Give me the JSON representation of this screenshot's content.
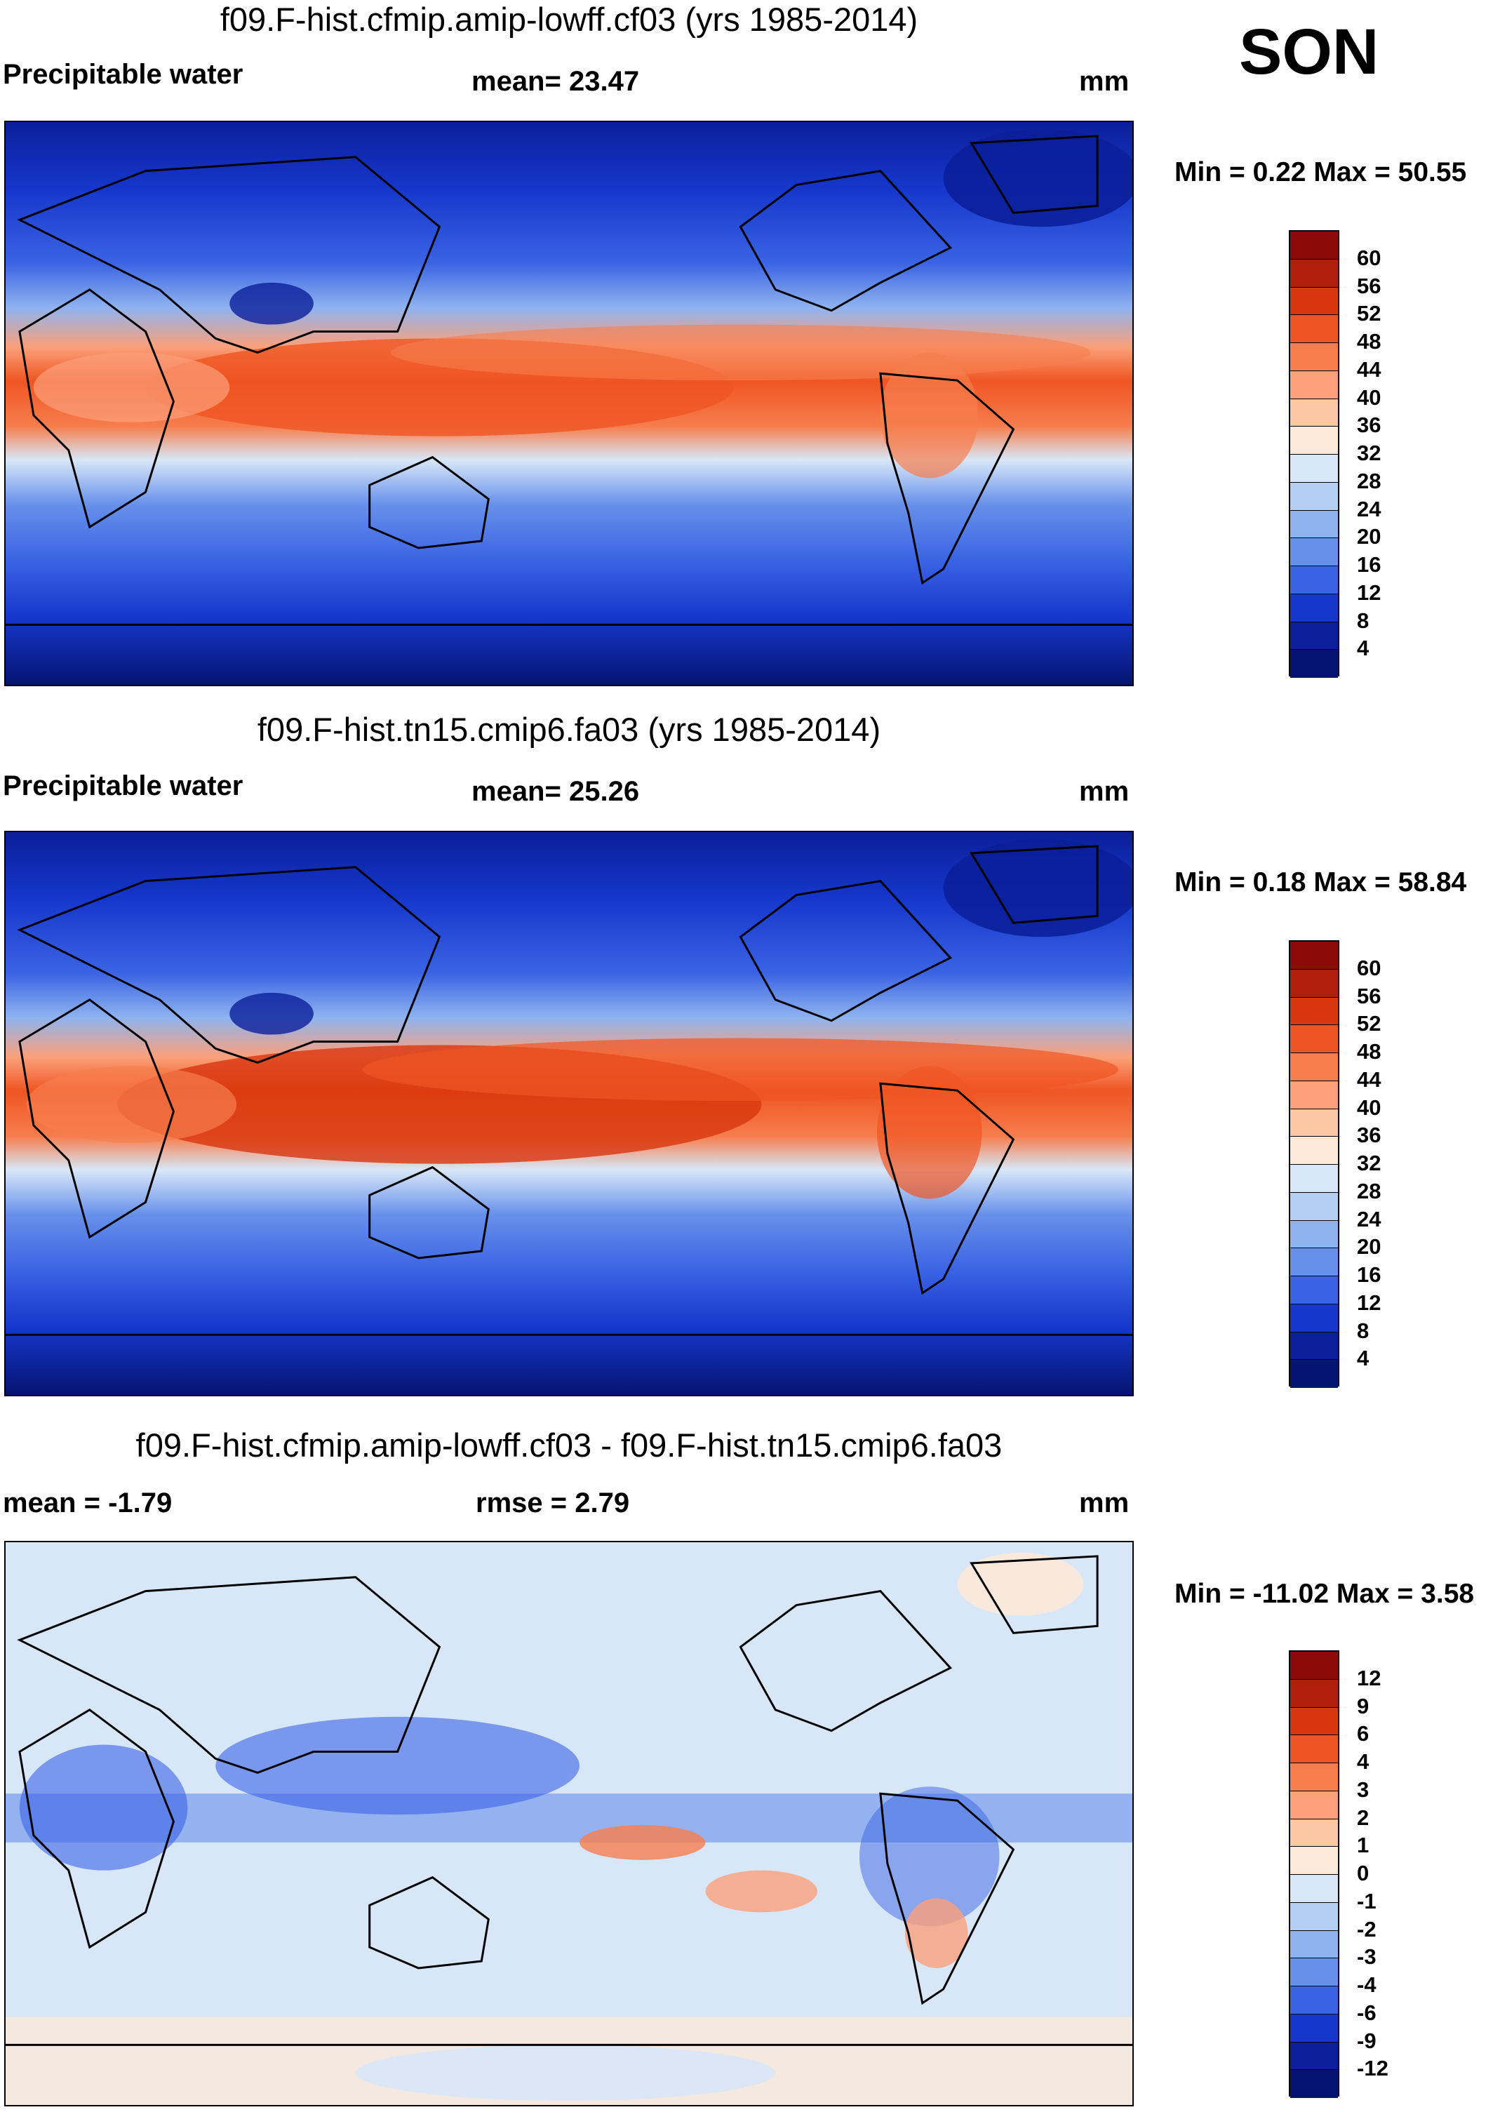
{
  "season": "SON",
  "units": "mm",
  "panels": [
    {
      "title": "f09.F-hist.cfmip.amip-lowff.cf03 (yrs 1985-2014)",
      "variable": "Precipitable water",
      "mean_text": "mean=  23.47",
      "units": "mm",
      "min_max": "Min =   0.22 Max =  50.55"
    },
    {
      "title": "f09.F-hist.tn15.cmip6.fa03 (yrs 1985-2014)",
      "variable": "Precipitable water",
      "mean_text": "mean=  25.26",
      "units": "mm",
      "min_max": "Min =   0.18 Max =  58.84"
    },
    {
      "title": "f09.F-hist.cfmip.amip-lowff.cf03 - f09.F-hist.tn15.cmip6.fa03",
      "mean_text": "mean =  -1.79",
      "rmse_text": "rmse =   2.79",
      "units": "mm",
      "min_max": "Min = -11.02 Max =   3.58"
    }
  ],
  "colorbar_abs": {
    "labels": [
      "60",
      "56",
      "52",
      "48",
      "44",
      "40",
      "36",
      "32",
      "28",
      "24",
      "20",
      "16",
      "12",
      "8",
      "4"
    ],
    "colors": [
      "#8c0a0a",
      "#b01e0c",
      "#d8360e",
      "#ef5522",
      "#f77d4d",
      "#fba07a",
      "#fdc7a6",
      "#fde9d8",
      "#d8e7f8",
      "#b5cff3",
      "#8fb3ef",
      "#6790ea",
      "#3a63e4",
      "#1637cc",
      "#0b1f9a",
      "#051471"
    ]
  },
  "colorbar_diff": {
    "labels": [
      "12",
      "9",
      "6",
      "4",
      "3",
      "2",
      "1",
      "0",
      "-1",
      "-2",
      "-3",
      "-4",
      "-6",
      "-9",
      "-12"
    ],
    "colors": [
      "#8c0a0a",
      "#b01e0c",
      "#d8360e",
      "#ef5522",
      "#f77d4d",
      "#fba07a",
      "#fdc7a6",
      "#fde9d8",
      "#d8e7f8",
      "#b5cff3",
      "#8fb3ef",
      "#6790ea",
      "#3a63e4",
      "#1637cc",
      "#0b1f9a",
      "#051471"
    ]
  }
}
